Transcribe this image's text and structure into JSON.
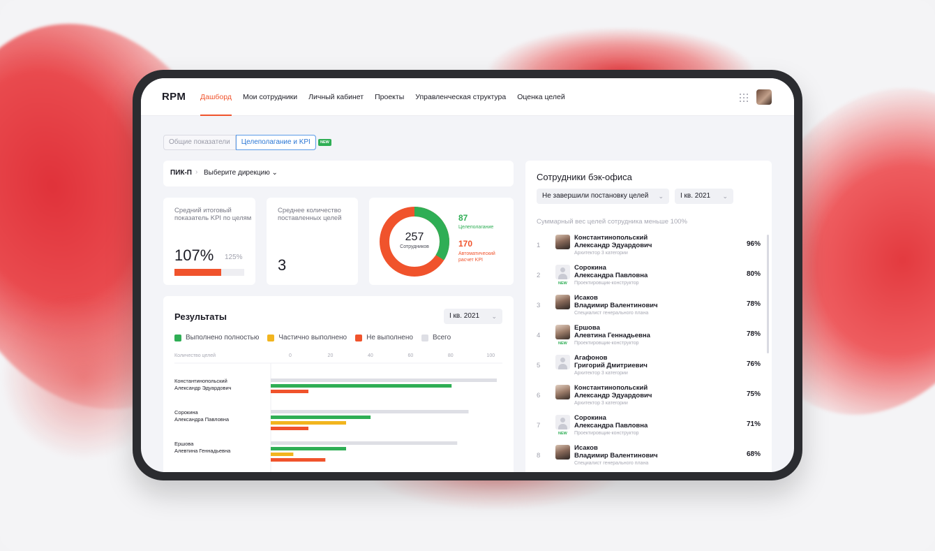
{
  "brand": {
    "logo": "RPM",
    "accent": "#f0532c",
    "green": "#2fae55",
    "yellow": "#f2b51f",
    "gray": "#dedfe5"
  },
  "nav": {
    "items": [
      {
        "label": "Дашборд",
        "active": true
      },
      {
        "label": "Мои сотрудники"
      },
      {
        "label": "Личный кабинет"
      },
      {
        "label": "Проекты"
      },
      {
        "label": "Управленческая структура"
      },
      {
        "label": "Оценка целей"
      }
    ],
    "apps_icon": "grid-icon",
    "avatar": "user-avatar"
  },
  "tabs": {
    "general": "Общие показатели",
    "goals": "Целеполагание и KPI",
    "new_badge": "NEW"
  },
  "breadcrumb": {
    "root": "ПИК-П",
    "select": "Выберите дирекцию ⌄"
  },
  "kpi": {
    "avg_kpi": {
      "label": "Средний итоговый показатель KPI по целям",
      "value": "107%",
      "target": "125%",
      "progress_fraction": 0.67
    },
    "avg_goals": {
      "label": "Среднее количество поставленных целей",
      "value": "3"
    },
    "employees": {
      "total": "257",
      "total_label": "Сотрудников",
      "goal_setting": "87",
      "goal_setting_label": "Целеполагание",
      "auto_kpi": "170",
      "auto_kpi_label": "Автоматический расчет KPI"
    }
  },
  "results": {
    "title": "Результаты",
    "period": "I кв. 2021",
    "legend": [
      {
        "label": "Выполнено полностью",
        "color": "#2fae55"
      },
      {
        "label": "Частично выполнено",
        "color": "#f2b51f"
      },
      {
        "label": "Не выполнено",
        "color": "#f0532c"
      },
      {
        "label": "Всего",
        "color": "#dedfe5"
      }
    ]
  },
  "chart_data": {
    "type": "bar",
    "orientation": "horizontal",
    "xlabel": "Количество целей",
    "xticks": [
      0,
      20,
      40,
      60,
      80,
      100
    ],
    "xlim": [
      0,
      110
    ],
    "categories": [
      [
        "Константинопольский",
        "Александр Эдуардович"
      ],
      [
        "Сорокина",
        "Александра Павловна"
      ],
      [
        "Ершова",
        "Алевтина Геннадьевна"
      ]
    ],
    "series": [
      {
        "name": "Всего",
        "color": "#dedfe5",
        "values": [
          120,
          105,
          99
        ]
      },
      {
        "name": "Выполнено полностью",
        "color": "#2fae55",
        "values": [
          96,
          53,
          40
        ]
      },
      {
        "name": "Частично выполнено",
        "color": "#f2b51f",
        "values": [
          0,
          40,
          12
        ]
      },
      {
        "name": "Не выполнено",
        "color": "#f0532c",
        "values": [
          20,
          20,
          29
        ]
      }
    ],
    "grid": false
  },
  "employees": {
    "title": "Сотрудники бэк-офиса",
    "filter": "Не завершили постановку целей",
    "period": "I кв. 2021",
    "note": "Суммарный вес целей сотрудника меньше 100%",
    "rows": [
      {
        "n": "1",
        "last": "Константинопольский",
        "first": "Александр Эдуардович",
        "role": "Архитектор 3 категории",
        "pct": "96%",
        "avatar": "photo",
        "new": ""
      },
      {
        "n": "2",
        "last": "Сорокина",
        "first": "Александра Павловна",
        "role": "Проектировщик-конструктор",
        "pct": "80%",
        "avatar": "blank",
        "new": "NEW"
      },
      {
        "n": "3",
        "last": "Исаков",
        "first": "Владимир Валентинович",
        "role": "Специалист генерального плана",
        "pct": "78%",
        "avatar": "photo",
        "new": ""
      },
      {
        "n": "4",
        "last": "Ершова",
        "first": "Алевтина Геннадьевна",
        "role": "Проектировщик-конструктор",
        "pct": "78%",
        "avatar": "photo2",
        "new": "NEW"
      },
      {
        "n": "5",
        "last": "Агафонов",
        "first": "Григорий Дмитриевич",
        "role": "Архитектор 3 категории",
        "pct": "76%",
        "avatar": "blank",
        "new": ""
      },
      {
        "n": "6",
        "last": "Константинопольский",
        "first": "Александр Эдуардович",
        "role": "Архитектор 3 категории",
        "pct": "75%",
        "avatar": "photo2",
        "new": ""
      },
      {
        "n": "7",
        "last": "Сорокина",
        "first": "Александра Павловна",
        "role": "Проектировщик-конструктор",
        "pct": "71%",
        "avatar": "blank",
        "new": "NEW"
      },
      {
        "n": "8",
        "last": "Исаков",
        "first": "Владимир Валентинович",
        "role": "Специалист генерального плана",
        "pct": "68%",
        "avatar": "photo",
        "new": ""
      }
    ]
  }
}
